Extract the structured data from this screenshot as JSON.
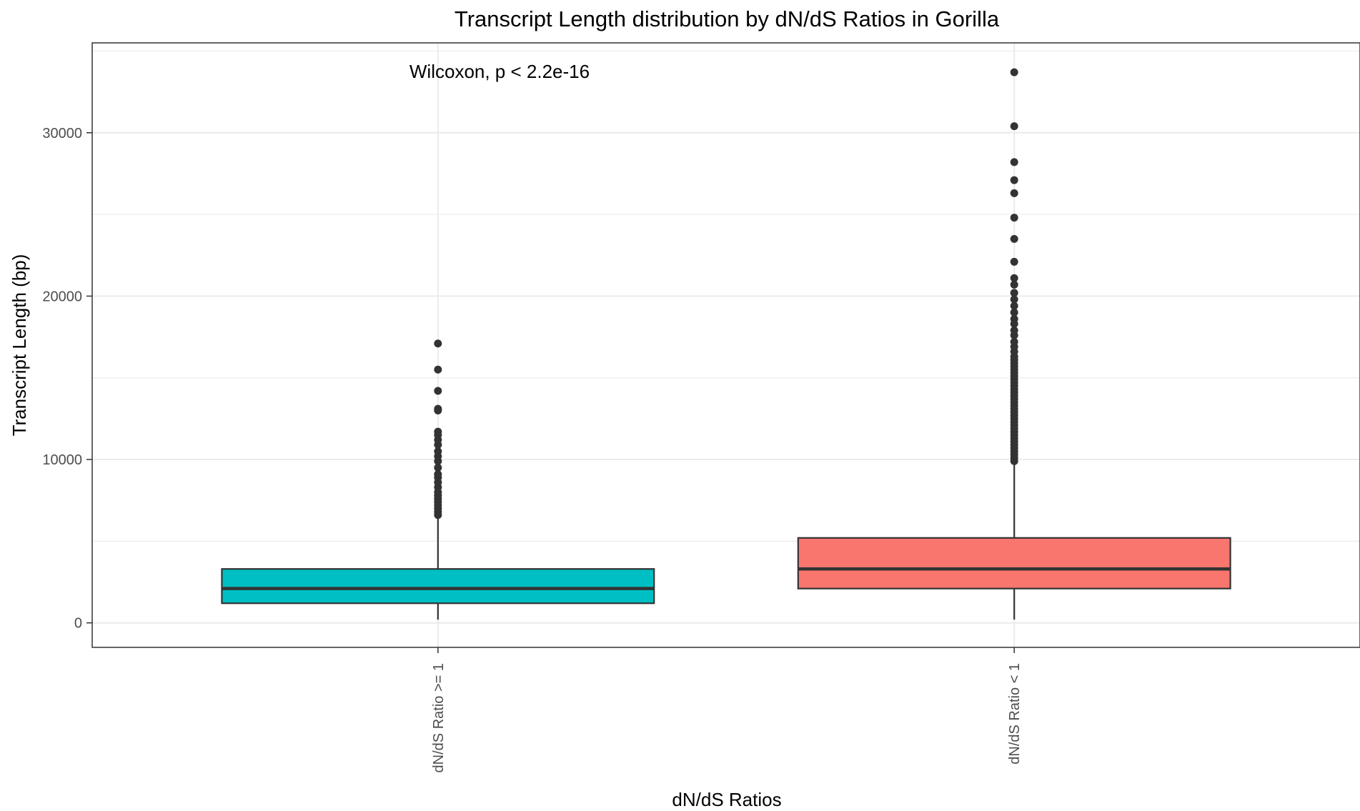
{
  "chart_data": {
    "type": "box",
    "title": "Transcript Length distribution by dN/dS Ratios in Gorilla",
    "xlabel": "dN/dS Ratios",
    "ylabel": "Transcript Length (bp)",
    "ylim": [
      -1500,
      35500
    ],
    "yticks": [
      0,
      10000,
      20000,
      30000
    ],
    "grid": true,
    "annotation": "Wilcoxon, p < 2.2e-16",
    "categories": [
      "dN/dS Ratio >= 1",
      "dN/dS Ratio < 1"
    ],
    "boxes": [
      {
        "category": "dN/dS Ratio >= 1",
        "color": "#00BFC4",
        "whisker_low": 200,
        "q1": 1200,
        "median": 2100,
        "q3": 3300,
        "whisker_high": 6500,
        "outliers": [
          6600,
          6800,
          7000,
          7200,
          7400,
          7600,
          7800,
          8000,
          8300,
          8600,
          8900,
          9100,
          9500,
          9900,
          10200,
          10500,
          10900,
          11200,
          11500,
          11700,
          13000,
          13100,
          14200,
          15500,
          17100
        ]
      },
      {
        "category": "dN/dS Ratio < 1",
        "color": "#F8766D",
        "whisker_low": 200,
        "q1": 2100,
        "median": 3300,
        "q3": 5200,
        "whisker_high": 9800,
        "outliers": [
          9900,
          10100,
          10300,
          10500,
          10700,
          10900,
          11100,
          11300,
          11500,
          11700,
          11900,
          12100,
          12300,
          12500,
          12700,
          12900,
          13100,
          13300,
          13500,
          13700,
          13900,
          14100,
          14300,
          14500,
          14700,
          14900,
          15100,
          15300,
          15500,
          15700,
          15900,
          16100,
          16300,
          16600,
          16900,
          17200,
          17600,
          17900,
          18300,
          18600,
          19000,
          19400,
          19800,
          20200,
          20700,
          21100,
          22100,
          23500,
          24800,
          26300,
          27100,
          28200,
          30400,
          33700
        ]
      }
    ]
  }
}
